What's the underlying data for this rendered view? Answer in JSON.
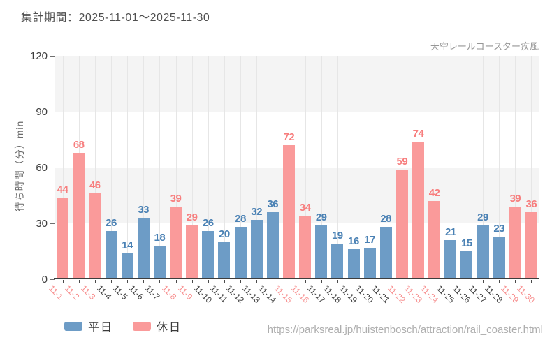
{
  "header": {
    "period_label": "集計期間：2025-11-01～2025-11-30"
  },
  "chart": {
    "attraction_label": "天空レールコースター疾風",
    "y_axis_title": "待ち時間（分）min"
  },
  "legend": {
    "weekday_label": "平日",
    "holiday_label": "休日"
  },
  "footer": {
    "url": "https://parksreal.jp/huistenbosch/attraction/rail_coaster.html"
  },
  "colors": {
    "weekday_bar": "#6d9cc6",
    "holiday_bar": "#fa9a9a",
    "weekday_value_label": "#4a81b4",
    "holiday_value_label": "#f77e7e",
    "weekday_tick_label": "#3d3d3d",
    "holiday_tick_label": "#f78f8f",
    "band_fill": "#f4f4f4"
  },
  "chart_data": {
    "type": "bar",
    "title": "集計期間：2025-11-01～2025-11-30",
    "subtitle": "天空レールコースター疾風",
    "xlabel": "",
    "ylabel": "待ち時間（分）min",
    "ylim": [
      0,
      120
    ],
    "yticks": [
      0,
      30,
      60,
      90,
      120
    ],
    "grid": "vertical-per-category, alternating horizontal bands 30-60 and 90-120",
    "legend": [
      "平日",
      "休日"
    ],
    "legend_position": "bottom-left",
    "categories": [
      "11-1",
      "11-2",
      "11-3",
      "11-4",
      "11-5",
      "11-6",
      "11-7",
      "11-8",
      "11-9",
      "11-10",
      "11-11",
      "11-12",
      "11-13",
      "11-14",
      "11-15",
      "11-16",
      "11-17",
      "11-18",
      "11-19",
      "11-20",
      "11-21",
      "11-22",
      "11-23",
      "11-24",
      "11-25",
      "11-26",
      "11-27",
      "11-28",
      "11-29",
      "11-30"
    ],
    "values": [
      44,
      68,
      46,
      26,
      14,
      33,
      18,
      39,
      29,
      26,
      20,
      28,
      32,
      36,
      72,
      34,
      29,
      19,
      16,
      17,
      28,
      59,
      74,
      42,
      21,
      15,
      29,
      23,
      39,
      36
    ],
    "day_types": [
      "holiday",
      "holiday",
      "holiday",
      "weekday",
      "weekday",
      "weekday",
      "weekday",
      "holiday",
      "holiday",
      "weekday",
      "weekday",
      "weekday",
      "weekday",
      "weekday",
      "holiday",
      "holiday",
      "weekday",
      "weekday",
      "weekday",
      "weekday",
      "weekday",
      "holiday",
      "holiday",
      "holiday",
      "weekday",
      "weekday",
      "weekday",
      "weekday",
      "holiday",
      "holiday"
    ]
  }
}
